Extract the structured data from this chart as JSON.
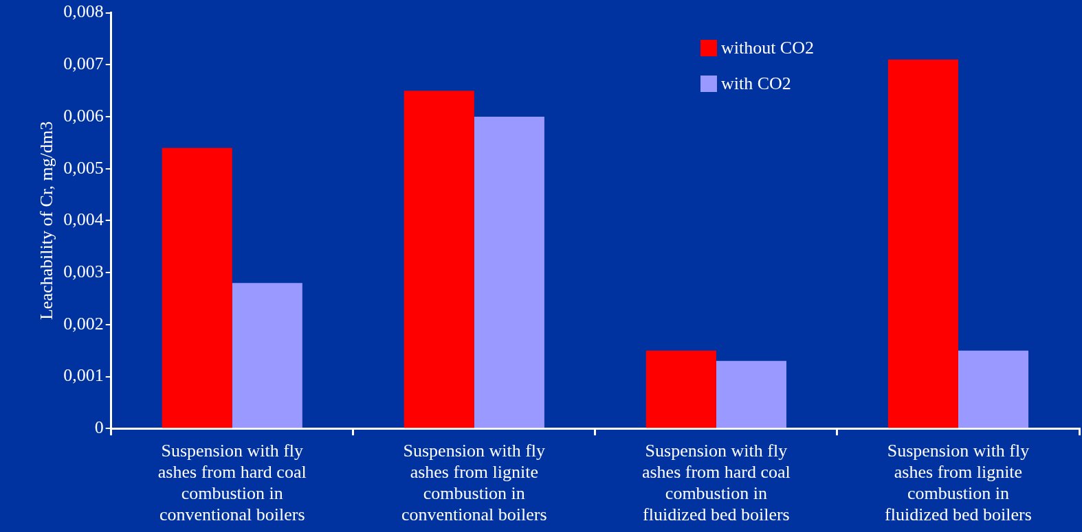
{
  "chart_data": {
    "type": "bar",
    "ylabel": "Leachability of Cr, mg/dm3",
    "categories": [
      "Suspension with fly ashes from hard coal combustion in conventional boilers",
      "Suspension with fly ashes from lignite combustion in conventional boilers",
      "Suspension with fly ashes from hard coal combustion in fluidized bed boilers",
      "Suspension with fly ashes from lignite combustion in fluidized bed boilers"
    ],
    "series": [
      {
        "name": "without CO2",
        "color": "#ff0000",
        "values": [
          0.0054,
          0.0065,
          0.0015,
          0.0071
        ]
      },
      {
        "name": "with CO2",
        "color": "#9999ff",
        "values": [
          0.0028,
          0.006,
          0.0013,
          0.0015
        ]
      }
    ],
    "ylim": [
      0,
      0.008
    ],
    "yticks": [
      0,
      {
        "value": 0.001,
        "label": "0,001"
      },
      {
        "value": 0.002,
        "label": "0,002"
      },
      {
        "value": 0.003,
        "label": "0,003"
      },
      {
        "value": 0.004,
        "label": "0,004"
      },
      {
        "value": 0.005,
        "label": "0,005"
      },
      {
        "value": 0.006,
        "label": "0,006"
      },
      {
        "value": 0.007,
        "label": "0,007"
      },
      {
        "value": 0.008,
        "label": "0,008"
      }
    ],
    "grid": false,
    "legend": "top right"
  }
}
